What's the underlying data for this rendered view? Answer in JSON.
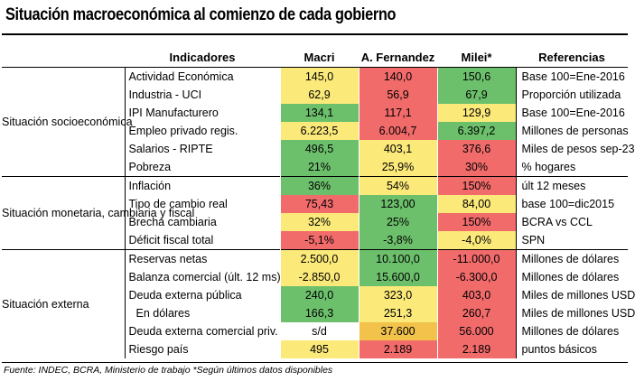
{
  "title": "Situación macroeconómica al comienzo de cada gobierno",
  "headers": {
    "indicadores": "Indicadores",
    "macri": "Macri",
    "fernandez": "A. Fernandez",
    "milei": "Milei*",
    "referencias": "Referencias"
  },
  "groups": [
    {
      "label": "Situación socioeconómica",
      "rows": [
        {
          "indicator": "Actividad Económica",
          "macri": "145,0",
          "fernandez": "140,0",
          "milei": "150,6",
          "ref": "Base 100=Ene-2016",
          "colors": [
            "#fbe97a",
            "#f26b6b",
            "#6cc06c"
          ]
        },
        {
          "indicator": "Industria - UCI",
          "macri": "62,9",
          "fernandez": "56,9",
          "milei": "67,9",
          "ref": "Proporción utilizada",
          "colors": [
            "#fbe97a",
            "#f26b6b",
            "#6cc06c"
          ]
        },
        {
          "indicator": "IPI Manufacturero",
          "macri": "134,1",
          "fernandez": "117,1",
          "milei": "129,9",
          "ref": "Base 100=Ene-2016",
          "colors": [
            "#6cc06c",
            "#f26b6b",
            "#fbe97a"
          ]
        },
        {
          "indicator": "Empleo privado regis.",
          "macri": "6.223,5",
          "fernandez": "6.004,7",
          "milei": "6.397,2",
          "ref": "Millones de personas",
          "colors": [
            "#fbe97a",
            "#f26b6b",
            "#6cc06c"
          ]
        },
        {
          "indicator": "Salarios - RIPTE",
          "macri": "496,5",
          "fernandez": "403,1",
          "milei": "376,6",
          "ref": "Miles de pesos sep-23",
          "colors": [
            "#6cc06c",
            "#fbe97a",
            "#f26b6b"
          ]
        },
        {
          "indicator": "Pobreza",
          "macri": "21%",
          "fernandez": "25,9%",
          "milei": "30%",
          "ref": "% hogares",
          "colors": [
            "#6cc06c",
            "#fbe97a",
            "#f26b6b"
          ]
        }
      ]
    },
    {
      "label": "Situación monetaria, cambiaria y fiscal",
      "rows": [
        {
          "indicator": "Inflación",
          "macri": "36%",
          "fernandez": "54%",
          "milei": "150%",
          "ref": "últ 12 meses",
          "colors": [
            "#6cc06c",
            "#fbe97a",
            "#f26b6b"
          ]
        },
        {
          "indicator": "Tipo de cambio real",
          "macri": "75,43",
          "fernandez": "123,00",
          "milei": "84,00",
          "ref": "base 100=dic2015",
          "colors": [
            "#f26b6b",
            "#6cc06c",
            "#fbe97a"
          ]
        },
        {
          "indicator": "Brecha cambiaria",
          "macri": "32%",
          "fernandez": "25%",
          "milei": "150%",
          "ref": "BCRA vs CCL",
          "colors": [
            "#fbe97a",
            "#6cc06c",
            "#f26b6b"
          ]
        },
        {
          "indicator": "Déficit fiscal total",
          "macri": "-5,1%",
          "fernandez": "-3,8%",
          "milei": "-4,0%",
          "ref": "SPN",
          "colors": [
            "#f26b6b",
            "#6cc06c",
            "#fbe97a"
          ]
        }
      ]
    },
    {
      "label": "Situación externa",
      "rows": [
        {
          "indicator": "Reservas netas",
          "macri": "2.500,0",
          "fernandez": "10.100,0",
          "milei": "-11.000,0",
          "ref": "Millones de dólares",
          "colors": [
            "#fbe97a",
            "#6cc06c",
            "#f26b6b"
          ]
        },
        {
          "indicator": "Balanza comercial (últ. 12 ms)",
          "macri": "-2.850,0",
          "fernandez": "15.600,0",
          "milei": "-6.300,0",
          "ref": "Millones de dólares",
          "colors": [
            "#fbe97a",
            "#6cc06c",
            "#f26b6b"
          ]
        },
        {
          "indicator": "Deuda externa pública",
          "macri": "240,0",
          "fernandez": "323,0",
          "milei": "403,0",
          "ref": "Miles de millones USD",
          "colors": [
            "#6cc06c",
            "#fbe97a",
            "#f26b6b"
          ]
        },
        {
          "indicator": "En dólares",
          "macri": "166,3",
          "fernandez": "251,3",
          "milei": "260,7",
          "ref": "Miles de millones USD",
          "colors": [
            "#6cc06c",
            "#fbe97a",
            "#f26b6b"
          ],
          "sub": true
        },
        {
          "indicator": "Deuda externa comercial priv.",
          "macri": "s/d",
          "fernandez": "37.600",
          "milei": "56.000",
          "ref": "Millones de dólares",
          "colors": [
            "#ffffff",
            "#f2c24b",
            "#f26b6b"
          ]
        },
        {
          "indicator": "Riesgo país",
          "macri": "495",
          "fernandez": "2.189",
          "milei": "2.189",
          "ref": "puntos básicos",
          "colors": [
            "#fbe97a",
            "#f26b6b",
            "#f26b6b"
          ]
        }
      ]
    }
  ],
  "footer": "Fuente: INDEC, BCRA, Ministerio de trabajo *Según últimos datos disponibles"
}
